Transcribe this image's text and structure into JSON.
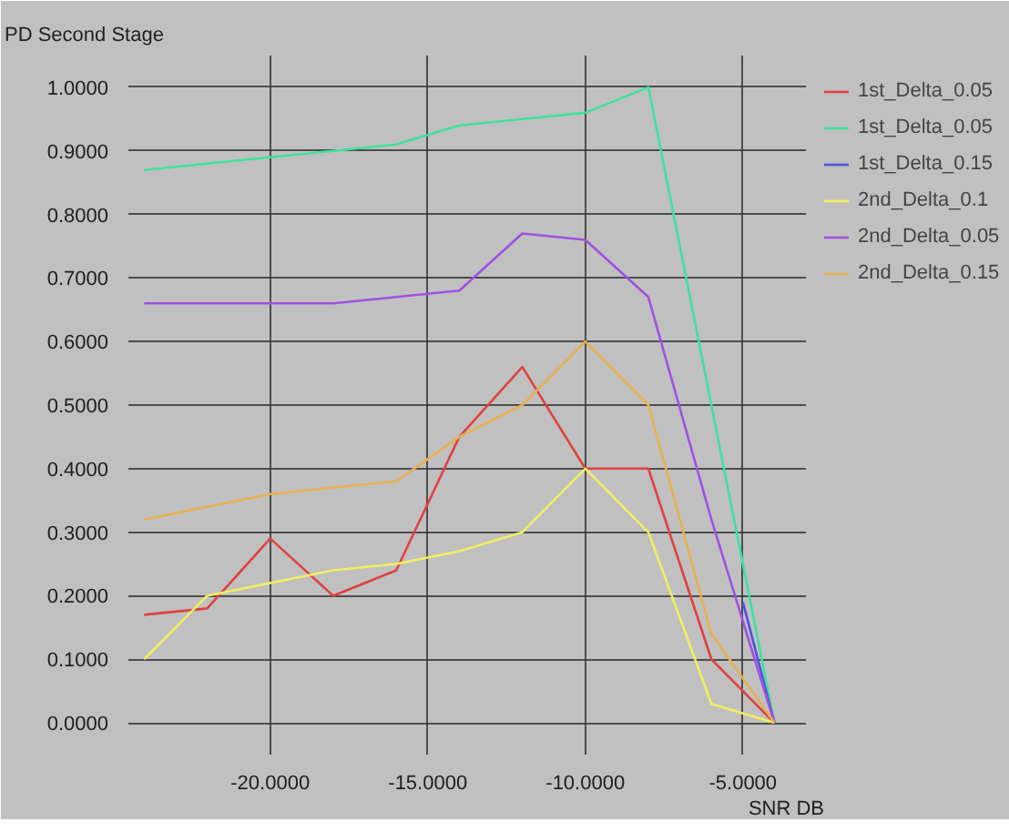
{
  "chart_data": {
    "type": "line",
    "title": "PD Second Stage",
    "xlabel": "SNR DB",
    "xlim": [
      -24.5,
      -3
    ],
    "ylim": [
      -0.05,
      1.05
    ],
    "xticks": [
      {
        "value": -20,
        "label": "-20.0000"
      },
      {
        "value": -15,
        "label": "-15.0000"
      },
      {
        "value": -10,
        "label": "-10.0000"
      },
      {
        "value": -5,
        "label": "-5.0000"
      }
    ],
    "yticks": [
      {
        "value": 0,
        "label": "0.0000"
      },
      {
        "value": 0.1,
        "label": "0.1000"
      },
      {
        "value": 0.2,
        "label": "0.2000"
      },
      {
        "value": 0.3,
        "label": "0.3000"
      },
      {
        "value": 0.4,
        "label": "0.4000"
      },
      {
        "value": 0.5,
        "label": "0.5000"
      },
      {
        "value": 0.6,
        "label": "0.6000"
      },
      {
        "value": 0.7,
        "label": "0.7000"
      },
      {
        "value": 0.8,
        "label": "0.8000"
      },
      {
        "value": 0.9,
        "label": "0.9000"
      },
      {
        "value": 1.0,
        "label": "1.0000"
      }
    ],
    "x": [
      -24,
      -22,
      -20,
      -18,
      -16,
      -14,
      -12,
      -10,
      -8,
      -6,
      -4
    ],
    "series": [
      {
        "name": "1st_Delta_0.05",
        "color": "#e04040",
        "values": [
          0.17,
          0.18,
          0.29,
          0.2,
          0.24,
          0.45,
          0.56,
          0.4,
          0.4,
          0.1,
          0
        ]
      },
      {
        "name": "1st_Delta_0.05",
        "color": "#40e0a0",
        "values": [
          0.87,
          0.88,
          0.89,
          0.9,
          0.91,
          0.94,
          0.95,
          0.96,
          1.0,
          0.5,
          0
        ]
      },
      {
        "name": "1st_Delta_0.15",
        "color": "#5050e0",
        "x": [
          -5,
          -4
        ],
        "values": [
          0.19,
          0
        ]
      },
      {
        "name": "2nd_Delta_0.1",
        "color": "#f0f060",
        "values": [
          0.1,
          0.2,
          0.22,
          0.24,
          0.25,
          0.27,
          0.3,
          0.4,
          0.3,
          0.03,
          0
        ]
      },
      {
        "name": "2nd_Delta_0.05",
        "color": "#a050e0",
        "values": [
          0.66,
          0.66,
          0.66,
          0.66,
          0.67,
          0.68,
          0.77,
          0.76,
          0.67,
          0.32,
          0
        ]
      },
      {
        "name": "2nd_Delta_0.15",
        "color": "#e8b050",
        "values": [
          0.32,
          0.34,
          0.36,
          0.37,
          0.38,
          0.45,
          0.5,
          0.6,
          0.5,
          0.14,
          0
        ]
      }
    ],
    "grid": true,
    "legend": "top right"
  }
}
